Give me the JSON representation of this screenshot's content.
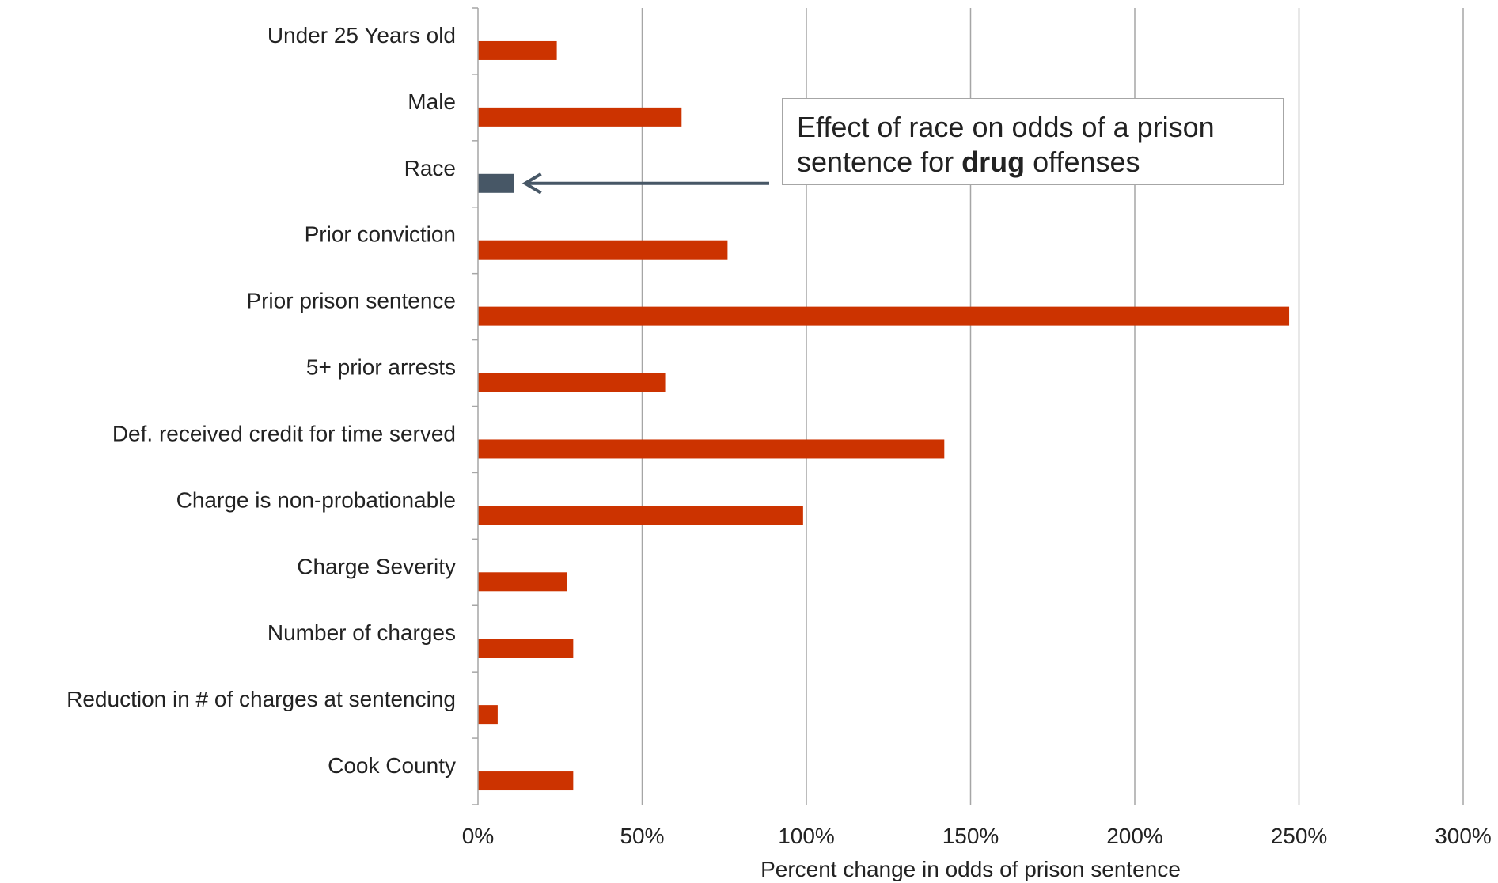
{
  "chart_data": {
    "type": "bar",
    "orientation": "horizontal",
    "categories": [
      "Under 25 Years old",
      "Male",
      "Race",
      "Prior conviction",
      "Prior prison sentence",
      "5+ prior arrests",
      "Def. received credit for time served",
      "Charge is non-probationable",
      "Charge Severity",
      "Number of charges",
      "Reduction in # of charges at sentencing",
      "Cook County"
    ],
    "values": [
      24,
      62,
      11,
      76,
      247,
      57,
      142,
      99,
      27,
      29,
      6,
      29
    ],
    "highlight_category": "Race",
    "xlabel": "Percent change in odds of prison sentence",
    "ylabel": "",
    "xlim": [
      0,
      300
    ],
    "xticks": [
      "0%",
      "50%",
      "100%",
      "150%",
      "200%",
      "250%",
      "300%"
    ],
    "grid": "vertical",
    "colors": {
      "bar": "#cc3300",
      "highlight": "#475766",
      "grid": "#a6a6a6",
      "text": "#222222"
    },
    "annotation": {
      "pre": "Effect of race on odds of a prison sentence for ",
      "bold": "drug",
      "post": " offenses",
      "points_to": "Race"
    }
  }
}
